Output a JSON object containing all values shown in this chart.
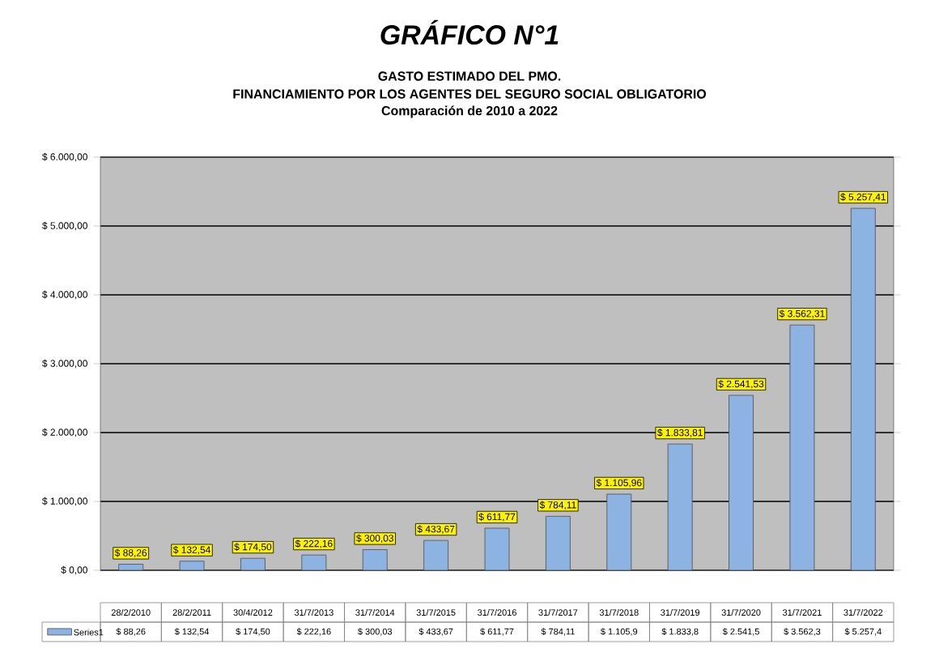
{
  "chart_data": {
    "type": "bar",
    "title": "GRÁFICO N°1",
    "subtitle": [
      "GASTO ESTIMADO DEL PMO.",
      "FINANCIAMIENTO POR LOS AGENTES DEL SEGURO SOCIAL OBLIGATORIO",
      "Comparación de 2010 a 2022"
    ],
    "categories": [
      "28/2/2010",
      "28/2/2011",
      "30/4/2012",
      "31/7/2013",
      "31/7/2014",
      "31/7/2015",
      "31/7/2016",
      "31/7/2017",
      "31/7/2018",
      "31/7/2019",
      "31/7/2020",
      "31/7/2021",
      "31/7/2022"
    ],
    "series": [
      {
        "name": "Series1",
        "color": "#8db3e2",
        "values": [
          88.26,
          132.54,
          174.5,
          222.16,
          300.03,
          433.67,
          611.77,
          784.11,
          1105.96,
          1833.81,
          2541.53,
          3562.31,
          5257.41
        ],
        "value_labels": [
          "$ 88,26",
          "$ 132,54",
          "$ 174,50",
          "$ 222,16",
          "$ 300,03",
          "$ 433,67",
          "$ 611,77",
          "$ 784,11",
          "$ 1.105,96",
          "$ 1.833,81",
          "$ 2.541,53",
          "$ 3.562,31",
          "$ 5.257,41"
        ]
      }
    ],
    "annotations": [
      "$ 88,26",
      "$ 132,54",
      "$ 174,50",
      "$ 222,16",
      "$ 300,03",
      "$ 433,67",
      "$ 611,77",
      "$ 784,11",
      "$ 1.105,9",
      "$ 1.833,8",
      "$ 2.541,5",
      "$ 3.562,3",
      "$ 5.257,4"
    ],
    "ylim": [
      0,
      6000
    ],
    "yticks": [
      {
        "value": 0,
        "label": "$ 0,00"
      },
      {
        "value": 1000,
        "label": "$ 1.000,00"
      },
      {
        "value": 2000,
        "label": "$ 2.000,00"
      },
      {
        "value": 3000,
        "label": "$ 3.000,00"
      },
      {
        "value": 4000,
        "label": "$ 4.000,00"
      },
      {
        "value": 5000,
        "label": "$ 5.000,00"
      },
      {
        "value": 6000,
        "label": "$ 6.000,00"
      }
    ],
    "grid": "y",
    "legend": "bottom"
  }
}
